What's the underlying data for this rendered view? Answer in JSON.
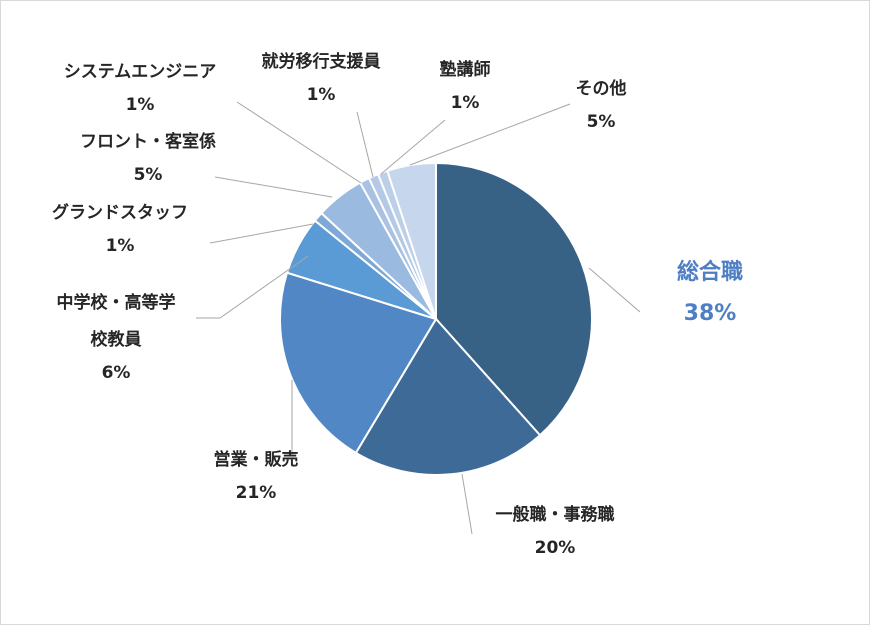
{
  "chart_data": {
    "type": "pie",
    "start_angle_deg": 0,
    "direction": "clockwise",
    "slices": [
      {
        "label": "総合職",
        "percent_label": "38%",
        "value": 38,
        "color": "#386186",
        "highlight": true
      },
      {
        "label": "一般職・事務職",
        "percent_label": "20%",
        "value": 20,
        "color": "#3d6a97",
        "highlight": false
      },
      {
        "label": "営業・販売",
        "percent_label": "21%",
        "value": 21,
        "color": "#5287c5",
        "highlight": false
      },
      {
        "label": "中学校・高等学",
        "label2": "校教員",
        "percent_label": "6%",
        "value": 6,
        "color": "#5b9bd5",
        "highlight": false
      },
      {
        "label": "グランドスタッフ",
        "percent_label": "1%",
        "value": 1,
        "color": "#7ea9d6",
        "highlight": false
      },
      {
        "label": "フロント・客室係",
        "percent_label": "5%",
        "value": 5,
        "color": "#9bbae0",
        "highlight": false
      },
      {
        "label": "システムエンジニア",
        "percent_label": "1%",
        "value": 1,
        "color": "#a9c2e2",
        "highlight": false
      },
      {
        "label": "就労移行支援員",
        "percent_label": "1%",
        "value": 1,
        "color": "#b3c9e6",
        "highlight": false
      },
      {
        "label": "塾講師",
        "percent_label": "1%",
        "value": 1,
        "color": "#bccfe9",
        "highlight": false
      },
      {
        "label": "その他",
        "percent_label": "5%",
        "value": 5,
        "color": "#c6d6ec",
        "highlight": false
      }
    ]
  }
}
